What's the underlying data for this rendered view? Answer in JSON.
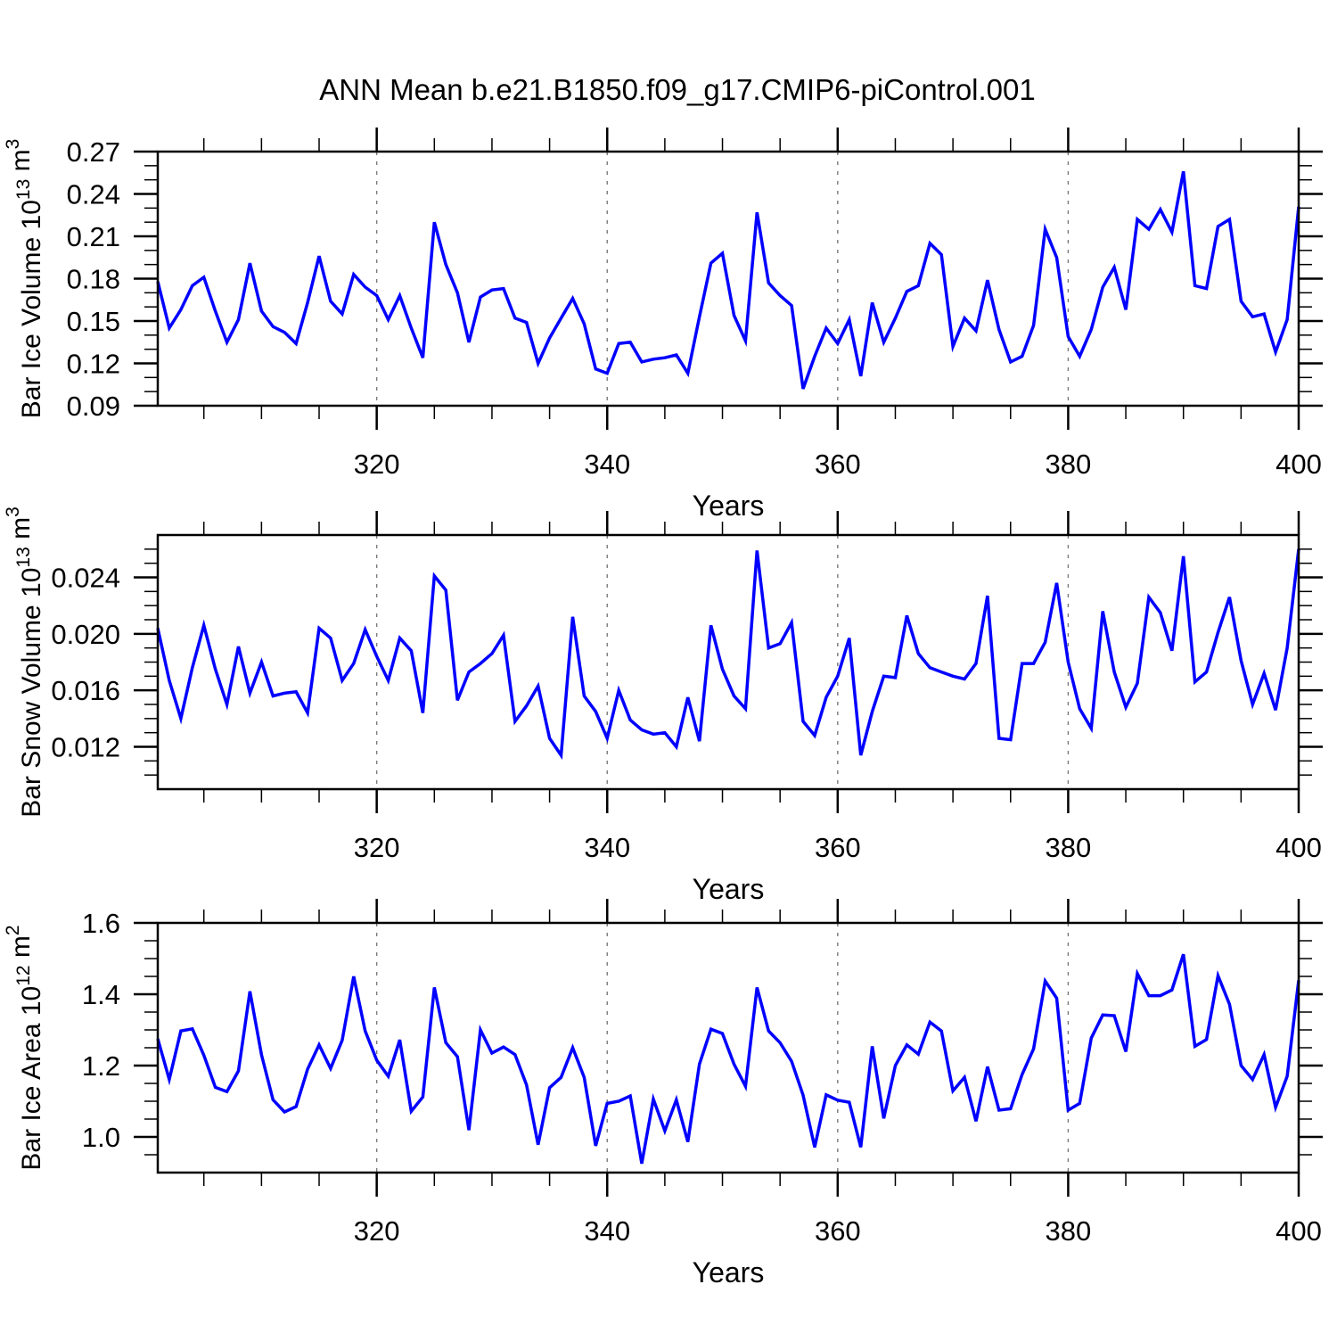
{
  "title": "ANN Mean b.e21.B1850.f09_g17.CMIP6-piControl.001",
  "chart_data": {
    "type": "line",
    "title": "ANN Mean b.e21.B1850.f09_g17.CMIP6-piControl.001",
    "x_label": "Years",
    "x_start": 301,
    "x_end": 400,
    "x_major_ticks": [
      320,
      340,
      360,
      380,
      400
    ],
    "x_major_tick_labels": [
      "320",
      "340",
      "360",
      "380",
      "400"
    ],
    "x_minor_step": 5,
    "x_gridlines": [
      320,
      340,
      360,
      380
    ],
    "line_color": "#0000ff",
    "grid_color": "#7a7a7a",
    "axis_color": "#000000",
    "legend": "none",
    "grid_style": "dashed-vertical-only",
    "panels": [
      {
        "id": "ice-volume",
        "ylabel": "Bar Ice Volume 10^13 m^3",
        "ylabel_parts": [
          {
            "t": "Bar Ice Volume 10"
          },
          {
            "sup": "13"
          },
          {
            "t": " m"
          },
          {
            "sup": "3"
          }
        ],
        "ylim": [
          0.09,
          0.27
        ],
        "y_major_ticks": [
          0.09,
          0.12,
          0.15,
          0.18,
          0.21,
          0.24,
          0.27
        ],
        "y_tick_labels": [
          "0.09",
          "0.12",
          "0.15",
          "0.18",
          "0.21",
          "0.24",
          "0.27"
        ],
        "y_minor_step": 0.01,
        "values": [
          0.178,
          0.145,
          0.158,
          0.175,
          0.181,
          0.157,
          0.135,
          0.151,
          0.191,
          0.157,
          0.146,
          0.142,
          0.134,
          0.163,
          0.196,
          0.164,
          0.155,
          0.183,
          0.174,
          0.168,
          0.151,
          0.168,
          0.145,
          0.124,
          0.22,
          0.19,
          0.17,
          0.135,
          0.167,
          0.172,
          0.173,
          0.152,
          0.149,
          0.12,
          0.138,
          0.152,
          0.166,
          0.148,
          0.116,
          0.113,
          0.134,
          0.135,
          0.121,
          0.123,
          0.124,
          0.126,
          0.113,
          0.153,
          0.191,
          0.198,
          0.154,
          0.136,
          0.227,
          0.177,
          0.168,
          0.161,
          0.102,
          0.125,
          0.145,
          0.134,
          0.151,
          0.111,
          0.163,
          0.135,
          0.152,
          0.171,
          0.175,
          0.205,
          0.197,
          0.132,
          0.152,
          0.143,
          0.179,
          0.144,
          0.121,
          0.125,
          0.147,
          0.215,
          0.195,
          0.139,
          0.125,
          0.144,
          0.174,
          0.188,
          0.158,
          0.222,
          0.215,
          0.229,
          0.213,
          0.256,
          0.175,
          0.173,
          0.217,
          0.222,
          0.164,
          0.153,
          0.155,
          0.128,
          0.151,
          0.231
        ]
      },
      {
        "id": "snow-volume",
        "ylabel": "Bar Snow Volume 10^13 m^3",
        "ylabel_parts": [
          {
            "t": "Bar Snow Volume 10"
          },
          {
            "sup": "13"
          },
          {
            "t": " m"
          },
          {
            "sup": "3"
          }
        ],
        "ylim": [
          0.009,
          0.027
        ],
        "y_major_ticks": [
          0.012,
          0.016,
          0.02,
          0.024
        ],
        "y_tick_labels": [
          "0.012",
          "0.016",
          "0.020",
          "0.024"
        ],
        "y_minor_step": 0.001,
        "values": [
          0.0204,
          0.0167,
          0.014,
          0.0176,
          0.0206,
          0.0175,
          0.015,
          0.0191,
          0.0158,
          0.018,
          0.0156,
          0.0158,
          0.0159,
          0.0144,
          0.0204,
          0.0197,
          0.0167,
          0.0179,
          0.0203,
          0.0184,
          0.0167,
          0.0197,
          0.0188,
          0.0144,
          0.0241,
          0.0231,
          0.0153,
          0.0173,
          0.0179,
          0.0186,
          0.0199,
          0.0138,
          0.0149,
          0.0163,
          0.0126,
          0.0114,
          0.0212,
          0.0156,
          0.0145,
          0.0126,
          0.016,
          0.0139,
          0.0132,
          0.0129,
          0.013,
          0.012,
          0.0155,
          0.0124,
          0.0206,
          0.0175,
          0.0156,
          0.0147,
          0.0259,
          0.019,
          0.0193,
          0.0208,
          0.0138,
          0.0128,
          0.0155,
          0.017,
          0.0197,
          0.0114,
          0.0145,
          0.017,
          0.0169,
          0.0213,
          0.0186,
          0.0176,
          0.0173,
          0.017,
          0.0168,
          0.0179,
          0.0227,
          0.0126,
          0.0125,
          0.0179,
          0.0179,
          0.0194,
          0.0236,
          0.018,
          0.0147,
          0.0133,
          0.0216,
          0.0173,
          0.0148,
          0.0165,
          0.0226,
          0.0215,
          0.0188,
          0.0255,
          0.0166,
          0.0173,
          0.0201,
          0.0226,
          0.0181,
          0.015,
          0.0172,
          0.0146,
          0.019,
          0.026
        ]
      },
      {
        "id": "ice-area",
        "ylabel": "Bar Ice Area 10^12 m^2",
        "ylabel_parts": [
          {
            "t": "Bar Ice Area 10"
          },
          {
            "sup": "12"
          },
          {
            "t": " m"
          },
          {
            "sup": "2"
          }
        ],
        "ylim": [
          0.9,
          1.6
        ],
        "y_major_ticks": [
          1.0,
          1.2,
          1.4,
          1.6
        ],
        "y_tick_labels": [
          "1.0",
          "1.2",
          "1.4",
          "1.6"
        ],
        "y_minor_step": 0.05,
        "values": [
          1.275,
          1.161,
          1.297,
          1.303,
          1.229,
          1.139,
          1.127,
          1.185,
          1.408,
          1.23,
          1.104,
          1.07,
          1.085,
          1.19,
          1.258,
          1.192,
          1.271,
          1.45,
          1.297,
          1.215,
          1.17,
          1.272,
          1.072,
          1.112,
          1.419,
          1.264,
          1.225,
          1.019,
          1.3,
          1.235,
          1.252,
          1.231,
          1.146,
          0.978,
          1.138,
          1.167,
          1.25,
          1.167,
          0.975,
          1.094,
          1.1,
          1.115,
          0.925,
          1.106,
          1.017,
          1.104,
          0.986,
          1.204,
          1.302,
          1.29,
          1.204,
          1.142,
          1.419,
          1.297,
          1.264,
          1.212,
          1.117,
          0.971,
          1.118,
          1.103,
          1.097,
          0.971,
          1.254,
          1.052,
          1.2,
          1.258,
          1.232,
          1.322,
          1.297,
          1.129,
          1.167,
          1.044,
          1.197,
          1.075,
          1.079,
          1.175,
          1.247,
          1.437,
          1.389,
          1.075,
          1.094,
          1.277,
          1.342,
          1.34,
          1.239,
          1.458,
          1.396,
          1.396,
          1.412,
          1.512,
          1.254,
          1.273,
          1.452,
          1.372,
          1.2,
          1.161,
          1.231,
          1.083,
          1.17,
          1.439
        ]
      }
    ]
  }
}
